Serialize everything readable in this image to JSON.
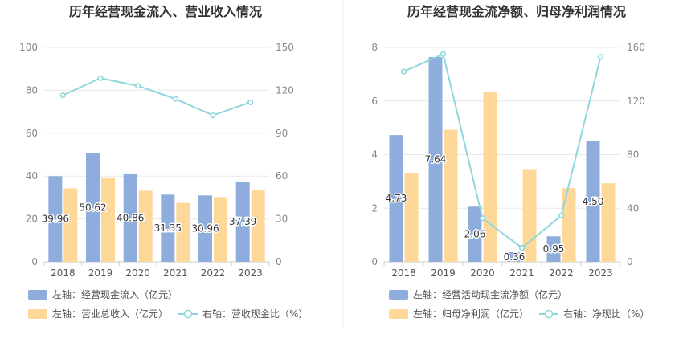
{
  "chart_data": [
    {
      "type": "bar",
      "title": "历年经营现金流入、营业收入情况",
      "categories": [
        "2018",
        "2019",
        "2020",
        "2021",
        "2022",
        "2023"
      ],
      "y_left": {
        "min": 0,
        "max": 100,
        "ticks": [
          0,
          20,
          40,
          60,
          80,
          100
        ]
      },
      "y_right": {
        "min": 0,
        "max": 150,
        "ticks": [
          0,
          30,
          60,
          90,
          120,
          150
        ]
      },
      "grid": true,
      "series": [
        {
          "name": "左轴：经营现金流入（亿元）",
          "kind": "bar",
          "axis": "left",
          "color": "#8eaddc",
          "values": [
            39.96,
            50.62,
            40.86,
            31.35,
            30.96,
            37.39
          ],
          "labels": [
            "39.96",
            "50.62",
            "40.86",
            "31.35",
            "30.96",
            "37.39"
          ]
        },
        {
          "name": "左轴：营业总收入（亿元）",
          "kind": "bar",
          "axis": "left",
          "color": "#fdd898",
          "values": [
            34.3,
            39.4,
            33.2,
            27.5,
            30.2,
            33.5
          ]
        },
        {
          "name": "右轴：营收现金比（%）",
          "kind": "line",
          "axis": "right",
          "color": "#8fd7dc",
          "values": [
            116.5,
            128.5,
            123.1,
            114.0,
            102.5,
            111.6
          ]
        }
      ],
      "legend_position": "bottom-left"
    },
    {
      "type": "bar",
      "title": "历年经营现金流净额、归母净利润情况",
      "categories": [
        "2018",
        "2019",
        "2020",
        "2021",
        "2022",
        "2023"
      ],
      "y_left": {
        "min": 0,
        "max": 8,
        "ticks": [
          0,
          2,
          4,
          6,
          8
        ]
      },
      "y_right": {
        "min": 0,
        "max": 160,
        "ticks": [
          0,
          40,
          80,
          120,
          160
        ]
      },
      "grid": true,
      "series": [
        {
          "name": "左轴：经营活动现金流净额（亿元）",
          "kind": "bar",
          "axis": "left",
          "color": "#8eaddc",
          "values": [
            4.73,
            7.64,
            2.06,
            0.36,
            0.95,
            4.5
          ],
          "labels": [
            "4.73",
            "7.64",
            "2.06",
            "0.36",
            "0.95",
            "4.50"
          ]
        },
        {
          "name": "左轴：归母净利润（亿元）",
          "kind": "bar",
          "axis": "left",
          "color": "#fdd898",
          "values": [
            3.32,
            4.93,
            6.35,
            3.43,
            2.75,
            2.93
          ]
        },
        {
          "name": "右轴：净现比（%）",
          "kind": "line",
          "axis": "right",
          "color": "#8fd7dc",
          "values": [
            142.0,
            155.0,
            32.5,
            10.5,
            34.5,
            153.0
          ]
        }
      ],
      "legend_position": "bottom-left"
    }
  ]
}
